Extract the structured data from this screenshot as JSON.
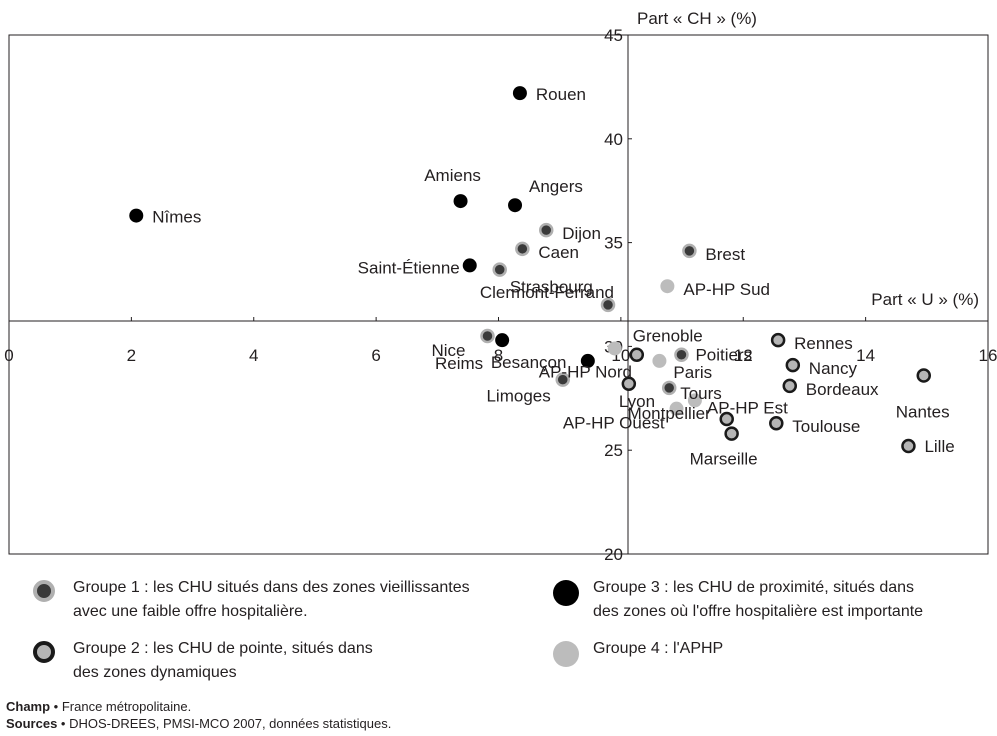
{
  "chart_data": {
    "type": "scatter",
    "xlabel": "Part « U » (%)",
    "ylabel": "Part « CH » (%)",
    "xlim": [
      0,
      16
    ],
    "ylim": [
      20,
      45
    ],
    "x_ticks": [
      "0",
      "2",
      "4",
      "6",
      "8",
      "10",
      "12",
      "14",
      "16"
    ],
    "y_ticks": [
      "20",
      "25",
      "30",
      "35",
      "40",
      "45"
    ],
    "grid": false,
    "groups": {
      "1": {
        "fill": "#3a3a3a",
        "stroke": "#b0b0b0"
      },
      "2": {
        "fill": "#b5b5b5",
        "stroke": "#1a1a1a"
      },
      "3": {
        "fill": "#000000",
        "stroke": "#000000"
      },
      "4": {
        "fill": "#bcbcbc",
        "stroke": "#bcbcbc"
      }
    },
    "points": [
      {
        "label": "Rouen",
        "x": 8.35,
        "y": 42.2,
        "group": "3"
      },
      {
        "label": "Nîmes",
        "x": 2.08,
        "y": 36.3,
        "group": "3"
      },
      {
        "label": "Amiens",
        "x": 7.38,
        "y": 37.0,
        "group": "3"
      },
      {
        "label": "Angers",
        "x": 8.27,
        "y": 36.8,
        "group": "3"
      },
      {
        "label": "Dijon",
        "x": 8.78,
        "y": 35.6,
        "group": "1"
      },
      {
        "label": "Caen",
        "x": 8.39,
        "y": 34.7,
        "group": "1"
      },
      {
        "label": "Saint-Étienne",
        "x": 7.53,
        "y": 33.9,
        "group": "3"
      },
      {
        "label": "Strasbourg",
        "x": 8.02,
        "y": 33.7,
        "group": "1"
      },
      {
        "label": "Clermont-Ferrand",
        "x": 9.79,
        "y": 32.0,
        "group": "1"
      },
      {
        "label": "Brest",
        "x": 11.12,
        "y": 34.6,
        "group": "1"
      },
      {
        "label": "AP-HP Sud",
        "x": 10.76,
        "y": 32.9,
        "group": "4"
      },
      {
        "label": "Nice",
        "x": 7.82,
        "y": 30.5,
        "group": "1"
      },
      {
        "label": "AP-HP Nord",
        "x": 9.9,
        "y": 29.9,
        "group": "4"
      },
      {
        "label": "Reims",
        "x": 8.06,
        "y": 30.3,
        "group": "3"
      },
      {
        "label": "Besançon",
        "x": 9.46,
        "y": 29.3,
        "group": "3"
      },
      {
        "label": "Limoges",
        "x": 9.05,
        "y": 28.4,
        "group": "1"
      },
      {
        "label": "Grenoble",
        "x": 10.26,
        "y": 29.6,
        "group": "2"
      },
      {
        "label": "Poitiers",
        "x": 10.99,
        "y": 29.6,
        "group": "1"
      },
      {
        "label": "Paris",
        "x": 10.63,
        "y": 29.3,
        "group": "4"
      },
      {
        "label": "Lyon",
        "x": 10.13,
        "y": 28.2,
        "group": "2"
      },
      {
        "label": "Tours",
        "x": 10.79,
        "y": 28.0,
        "group": "1"
      },
      {
        "label": "AP-HP Est",
        "x": 11.21,
        "y": 27.4,
        "group": "4"
      },
      {
        "label": "AP-HP Ouest",
        "x": 10.91,
        "y": 27.0,
        "group": "4"
      },
      {
        "label": "Montpellier",
        "x": 11.73,
        "y": 26.5,
        "group": "2"
      },
      {
        "label": "Marseille",
        "x": 11.81,
        "y": 25.8,
        "group": "2"
      },
      {
        "label": "Rennes",
        "x": 12.57,
        "y": 30.3,
        "group": "2"
      },
      {
        "label": "Nancy",
        "x": 12.81,
        "y": 29.1,
        "group": "2"
      },
      {
        "label": "Bordeaux",
        "x": 12.76,
        "y": 28.1,
        "group": "2"
      },
      {
        "label": "Toulouse",
        "x": 12.54,
        "y": 26.3,
        "group": "2"
      },
      {
        "label": "Nantes",
        "x": 14.95,
        "y": 28.6,
        "group": "2"
      },
      {
        "label": "Lille",
        "x": 14.7,
        "y": 25.2,
        "group": "2"
      }
    ]
  },
  "legend": [
    {
      "group": "1",
      "line1": "Groupe 1 : les CHU situés dans des zones vieillissantes",
      "line2": "avec une faible offre hospitalière."
    },
    {
      "group": "3",
      "line1": "Groupe 3 : les CHU de proximité, situés dans",
      "line2": "des zones où l'offre hospitalière est importante"
    },
    {
      "group": "2",
      "line1": "Groupe 2 : les CHU de pointe, situés dans",
      "line2": "des zones dynamiques"
    },
    {
      "group": "4",
      "line1": "Groupe 4 : l'APHP",
      "line2": ""
    }
  ],
  "footer": {
    "champ_label": "Champ",
    "champ_text": " • France métropolitaine.",
    "sources_label": "Sources",
    "sources_text": " • DHOS-DREES, PMSI-MCO 2007, données statistiques."
  }
}
